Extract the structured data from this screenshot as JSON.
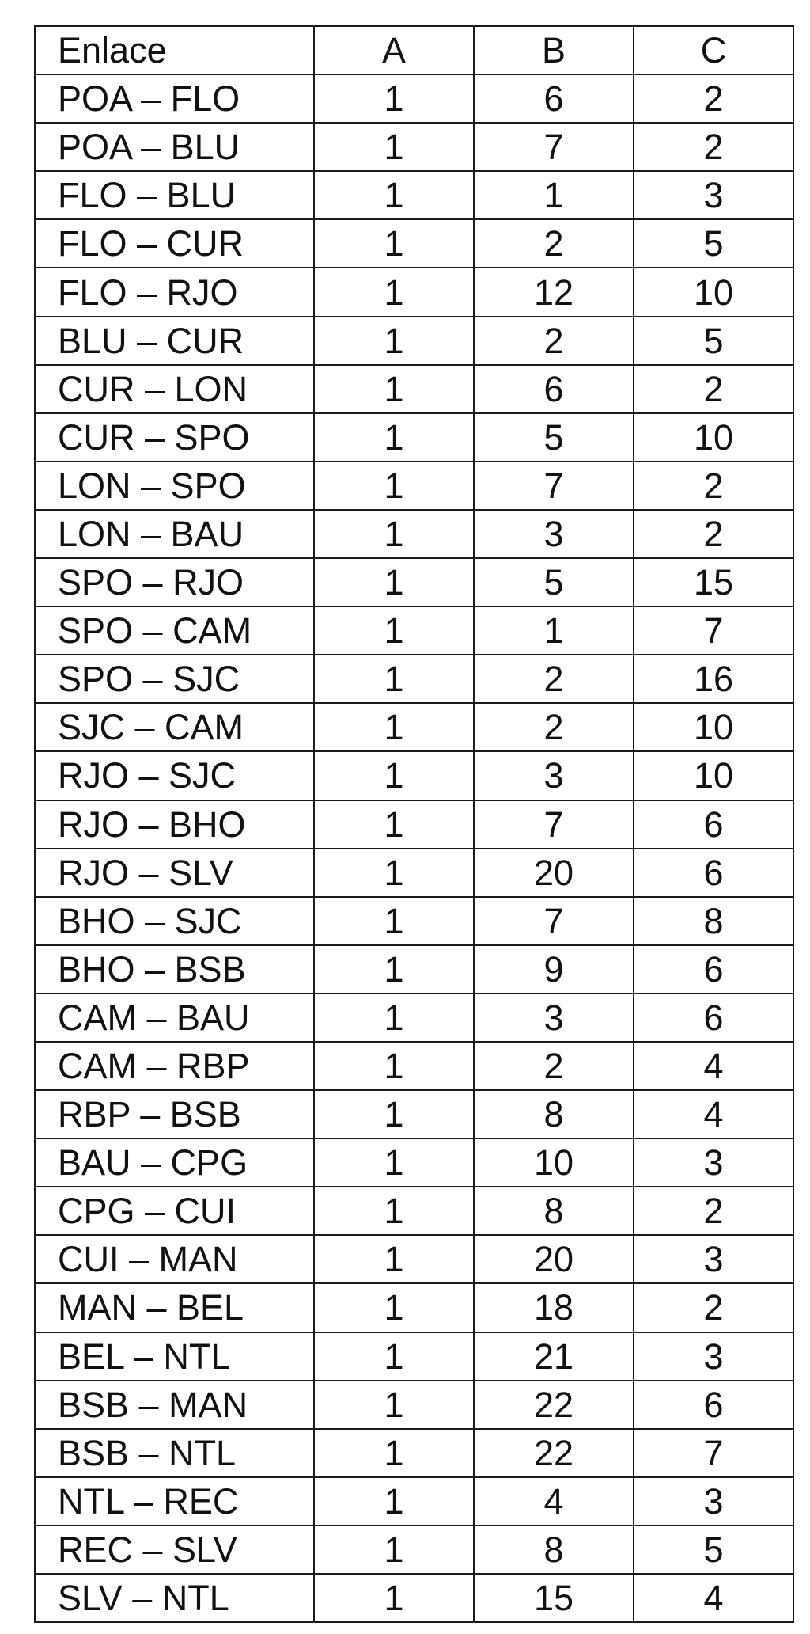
{
  "table": {
    "headers": [
      "Enlace",
      "A",
      "B",
      "C"
    ],
    "rows": [
      [
        "POA – FLO",
        "1",
        "6",
        "2"
      ],
      [
        "POA – BLU",
        "1",
        "7",
        "2"
      ],
      [
        "FLO – BLU",
        "1",
        "1",
        "3"
      ],
      [
        "FLO – CUR",
        "1",
        "2",
        "5"
      ],
      [
        "FLO – RJO",
        "1",
        "12",
        "10"
      ],
      [
        "BLU – CUR",
        "1",
        "2",
        "5"
      ],
      [
        "CUR – LON",
        "1",
        "6",
        "2"
      ],
      [
        "CUR – SPO",
        "1",
        "5",
        "10"
      ],
      [
        "LON – SPO",
        "1",
        "7",
        "2"
      ],
      [
        "LON – BAU",
        "1",
        "3",
        "2"
      ],
      [
        "SPO – RJO",
        "1",
        "5",
        "15"
      ],
      [
        "SPO – CAM",
        "1",
        "1",
        "7"
      ],
      [
        "SPO – SJC",
        "1",
        "2",
        "16"
      ],
      [
        "SJC – CAM",
        "1",
        "2",
        "10"
      ],
      [
        "RJO – SJC",
        "1",
        "3",
        "10"
      ],
      [
        "RJO – BHO",
        "1",
        "7",
        "6"
      ],
      [
        "RJO – SLV",
        "1",
        "20",
        "6"
      ],
      [
        "BHO – SJC",
        "1",
        "7",
        "8"
      ],
      [
        "BHO – BSB",
        "1",
        "9",
        "6"
      ],
      [
        "CAM – BAU",
        "1",
        "3",
        "6"
      ],
      [
        "CAM – RBP",
        "1",
        "2",
        "4"
      ],
      [
        "RBP – BSB",
        "1",
        "8",
        "4"
      ],
      [
        "BAU – CPG",
        "1",
        "10",
        "3"
      ],
      [
        "CPG – CUI",
        "1",
        "8",
        "2"
      ],
      [
        "CUI – MAN",
        "1",
        "20",
        "3"
      ],
      [
        "MAN – BEL",
        "1",
        "18",
        "2"
      ],
      [
        "BEL – NTL",
        "1",
        "21",
        "3"
      ],
      [
        "BSB – MAN",
        "1",
        "22",
        "6"
      ],
      [
        "BSB – NTL",
        "1",
        "22",
        "7"
      ],
      [
        "NTL – REC",
        "1",
        "4",
        "3"
      ],
      [
        "REC – SLV",
        "1",
        "8",
        "5"
      ],
      [
        "SLV – NTL",
        "1",
        "15",
        "4"
      ]
    ]
  }
}
